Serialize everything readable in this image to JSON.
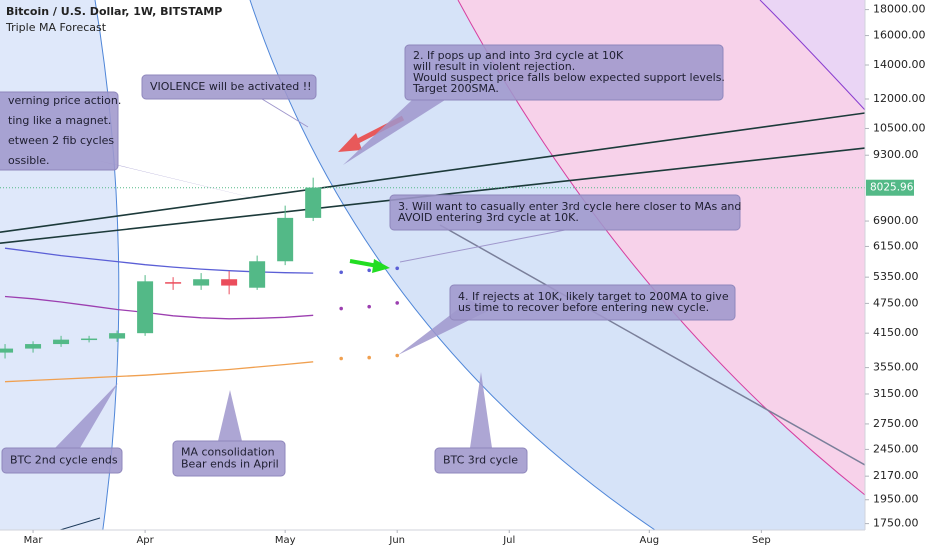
{
  "chart_data": {
    "type": "candlestick",
    "title": "Bitcoin / U.S. Dollar, 1W, BITSTAMP",
    "subtitle": "Triple MA Forecast",
    "log_y": true,
    "grid": false,
    "xlim": [
      -0.18,
      30.7
    ],
    "xticks": [
      {
        "value": 1,
        "label": "Mar"
      },
      {
        "value": 5,
        "label": "Apr"
      },
      {
        "value": 10,
        "label": "May"
      },
      {
        "value": 14,
        "label": "Jun"
      },
      {
        "value": 18,
        "label": "Jul"
      },
      {
        "value": 23,
        "label": "Aug"
      },
      {
        "value": 27,
        "label": "Sep"
      }
    ],
    "ylim": [
      1700,
      18800
    ],
    "yticks": [
      {
        "value": 18000,
        "label": "18000.00"
      },
      {
        "value": 16000,
        "label": "16000.00"
      },
      {
        "value": 14000,
        "label": "14000.00"
      },
      {
        "value": 12000,
        "label": "12000.00"
      },
      {
        "value": 10500,
        "label": "10500.00"
      },
      {
        "value": 9300,
        "label": "9300.00"
      },
      {
        "value": 6900,
        "label": "6900.00"
      },
      {
        "value": 6150,
        "label": "6150.00"
      },
      {
        "value": 5350,
        "label": "5350.00"
      },
      {
        "value": 4750,
        "label": "4750.00"
      },
      {
        "value": 4150,
        "label": "4150.00"
      },
      {
        "value": 3550,
        "label": "3550.00"
      },
      {
        "value": 3150,
        "label": "3150.00"
      },
      {
        "value": 2750,
        "label": "2750.00"
      },
      {
        "value": 2450,
        "label": "2450.00"
      },
      {
        "value": 2170,
        "label": "2170.00"
      },
      {
        "value": 1950,
        "label": "1950.00"
      },
      {
        "value": 1750,
        "label": "1750.00"
      }
    ],
    "x": [
      0,
      1,
      2,
      3,
      4,
      5,
      6,
      7,
      8,
      9,
      10,
      11
    ],
    "open": [
      3800,
      3870,
      3950,
      4030,
      4050,
      4150,
      5230,
      5150,
      5300,
      5100,
      5750,
      7000
    ],
    "high": [
      3950,
      4000,
      4100,
      4100,
      4200,
      5400,
      5350,
      5450,
      5500,
      5900,
      7400,
      8400
    ],
    "low": [
      3700,
      3800,
      3900,
      3980,
      3990,
      4100,
      5050,
      5050,
      4950,
      5050,
      5650,
      6900
    ],
    "close": [
      3870,
      3950,
      4030,
      4050,
      4150,
      5250,
      5200,
      5300,
      5150,
      5750,
      7000,
      8030
    ],
    "up_color": "#53b987",
    "down_color": "#eb4d5c",
    "last_price": 8025.96,
    "last_price_color": "#53b987",
    "overlays": [
      {
        "color": "#5b5fd6",
        "x": [
          0,
          1,
          2,
          3,
          4,
          5,
          6,
          7,
          8,
          9,
          10,
          11
        ],
        "values": [
          6100,
          6000,
          5900,
          5820,
          5740,
          5660,
          5600,
          5550,
          5510,
          5480,
          5460,
          5450
        ]
      },
      {
        "color": "#9c3fb0",
        "x": [
          0,
          1,
          2,
          3,
          4,
          5,
          6,
          7,
          8,
          9,
          10,
          11
        ],
        "values": [
          4900,
          4850,
          4780,
          4700,
          4620,
          4560,
          4490,
          4450,
          4430,
          4440,
          4460,
          4500
        ]
      },
      {
        "color": "#f0a050",
        "x": [
          0,
          1,
          2,
          3,
          4,
          5,
          6,
          7,
          8,
          9,
          10,
          11
        ],
        "values": [
          3330,
          3350,
          3370,
          3390,
          3410,
          3430,
          3460,
          3490,
          3520,
          3560,
          3600,
          3645
        ]
      }
    ],
    "forecast": [
      {
        "color": "#5b5fd6",
        "x": [
          12,
          13,
          14
        ],
        "values": [
          5470,
          5520,
          5570
        ]
      },
      {
        "color": "#9c3fb0",
        "x": [
          12,
          13,
          14
        ],
        "values": [
          4640,
          4680,
          4760
        ]
      },
      {
        "color": "#f0a050",
        "x": [
          12,
          13,
          14
        ],
        "values": [
          3700,
          3715,
          3750
        ]
      }
    ],
    "trendlines": [
      {
        "color": "#1c3a3a",
        "x": [
          -0.18,
          30.7
        ],
        "values": [
          6560,
          11260
        ]
      },
      {
        "color": "#1c3a3a",
        "x": [
          -0.18,
          30.7
        ],
        "values": [
          6240,
          9605
        ]
      }
    ],
    "annotations": [
      [
        "VIOLENCE will be activated !!"
      ],
      [
        "2. If pops up and into 3rd cycle at 10K",
        "will result in violent rejection.",
        "Would suspect price falls below expected support levels.",
        "Target 200SMA."
      ],
      [
        "verning price action.",
        "ting like a magnet.",
        "etween 2 fib cycles",
        "ossible."
      ],
      [
        "3. Will want to casually enter 3rd cycle here closer to MAs and",
        "AVOID entering 3rd cycle at 10K."
      ],
      [
        "4. If rejects at 10K, likely target to 200MA to give",
        "us time to recover before entering new cycle."
      ],
      [
        "BTC 2nd cycle ends"
      ],
      [
        "MA consolidation",
        "Bear ends in April"
      ],
      [
        "BTC 3rd cycle"
      ]
    ]
  }
}
